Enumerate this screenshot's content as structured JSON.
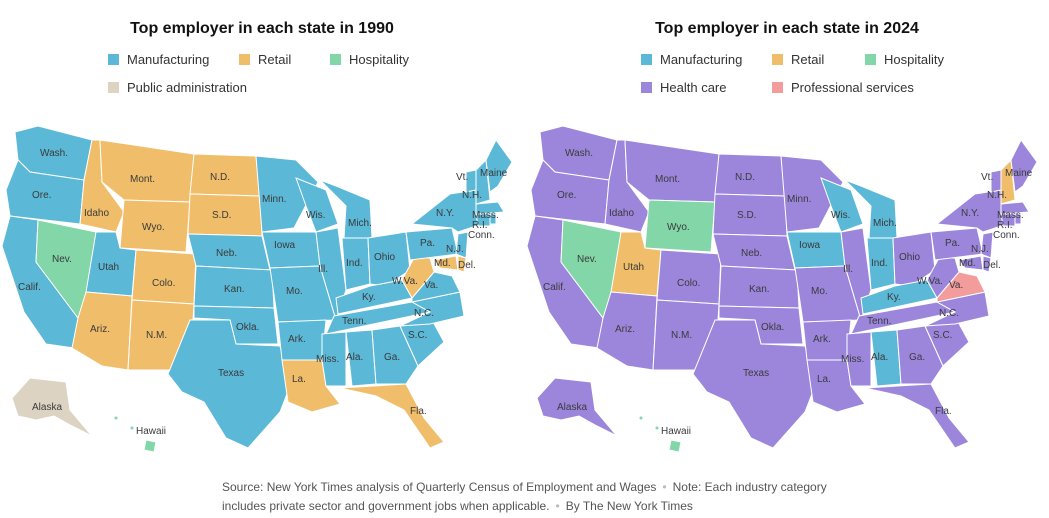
{
  "colors": {
    "manufacturing": "#5bb8d6",
    "retail": "#f0be6a",
    "hospitality": "#82d6a7",
    "public_admin": "#dcd3c3",
    "health_care": "#9c86dc",
    "professional_services": "#f29c9c"
  },
  "map1990": {
    "title": "Top employer in each state in 1990",
    "legend": [
      "Manufacturing",
      "Retail",
      "Hospitality",
      "Public administration"
    ],
    "labels": {
      "wash": "Wash.",
      "ore": "Ore.",
      "calif": "Calif.",
      "idaho": "Idaho",
      "nev": "Nev.",
      "mont": "Mont.",
      "wyo": "Wyo.",
      "utah": "Utah",
      "colo": "Colo.",
      "ariz": "Ariz.",
      "nm": "N.M.",
      "nd": "N.D.",
      "sd": "S.D.",
      "neb": "Neb.",
      "kan": "Kan.",
      "okla": "Okla.",
      "texas": "Texas",
      "minn": "Minn.",
      "iowa": "Iowa",
      "mo": "Mo.",
      "ark": "Ark.",
      "la": "La.",
      "wis": "Wis.",
      "ill": "Ill.",
      "mich": "Mich.",
      "ind": "Ind.",
      "ohio": "Ohio",
      "ky": "Ky.",
      "tenn": "Tenn.",
      "miss": "Miss.",
      "ala": "Ala.",
      "ga": "Ga.",
      "fla": "Fla.",
      "sc": "S.C.",
      "nc": "N.C.",
      "va": "Va.",
      "wva": "W.Va.",
      "pa": "Pa.",
      "ny": "N.Y.",
      "vt": "Vt.",
      "nh": "N.H.",
      "maine": "Maine",
      "mass": "Mass.",
      "ri": "R.I.",
      "conn": "Conn.",
      "nj": "N.J.",
      "del": "Del.",
      "md": "Md.",
      "alaska": "Alaska",
      "hawaii": "Hawaii"
    }
  },
  "map2024": {
    "title": "Top employer in each state in 2024",
    "legend": [
      "Manufacturing",
      "Retail",
      "Hospitality",
      "Health care",
      "Professional services"
    ],
    "labels": {
      "wash": "Wash.",
      "ore": "Ore.",
      "calif": "Calif.",
      "idaho": "Idaho",
      "nev": "Nev.",
      "mont": "Mont.",
      "wyo": "Wyo.",
      "utah": "Utah",
      "colo": "Colo.",
      "ariz": "Ariz.",
      "nm": "N.M.",
      "nd": "N.D.",
      "sd": "S.D.",
      "neb": "Neb.",
      "kan": "Kan.",
      "okla": "Okla.",
      "texas": "Texas",
      "minn": "Minn.",
      "iowa": "Iowa",
      "mo": "Mo.",
      "ark": "Ark.",
      "la": "La.",
      "wis": "Wis.",
      "ill": "Ill.",
      "mich": "Mich.",
      "ind": "Ind.",
      "ohio": "Ohio",
      "ky": "Ky.",
      "tenn": "Tenn.",
      "miss": "Miss.",
      "ala": "Ala.",
      "ga": "Ga.",
      "fla": "Fla.",
      "sc": "S.C.",
      "nc": "N.C.",
      "va": "Va.",
      "wva": "W.Va.",
      "pa": "Pa.",
      "ny": "N.Y.",
      "vt": "Vt.",
      "nh": "N.H.",
      "maine": "Maine",
      "mass": "Mass.",
      "ri": "R.I.",
      "conn": "Conn.",
      "nj": "N.J.",
      "del": "Del.",
      "md": "Md.",
      "alaska": "Alaska",
      "hawaii": "Hawaii"
    }
  },
  "footer": {
    "source": "Source: New York Times analysis of Quarterly Census of Employment and Wages",
    "note": "Note: Each industry category includes private sector and government jobs when applicable.",
    "credit": "By The New York Times"
  }
}
